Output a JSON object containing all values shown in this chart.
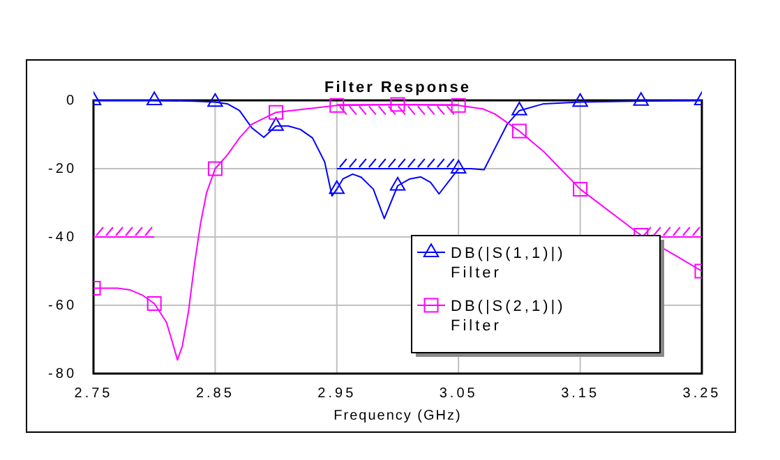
{
  "chart_data": {
    "type": "line",
    "title": "Filter Response",
    "xlabel": "Frequency (GHz)",
    "xlim": [
      2.75,
      3.25
    ],
    "xticks": [
      2.75,
      2.85,
      2.95,
      3.05,
      3.15,
      3.25
    ],
    "ylim": [
      -80,
      0
    ],
    "yticks": [
      -80,
      -60,
      -40,
      -20,
      0
    ],
    "grid": true,
    "legend": "bottom right",
    "series": [
      {
        "name": "DB(|S(1,1)|) Filter",
        "color": "#0000ff",
        "x": [
          2.75,
          2.8,
          2.83,
          2.85,
          2.86,
          2.87,
          2.88,
          2.89,
          2.9,
          2.91,
          2.92,
          2.93,
          2.94,
          2.946,
          2.95,
          2.955,
          2.963,
          2.97,
          2.98,
          2.989,
          3.0,
          3.01,
          3.019,
          3.027,
          3.034,
          3.05,
          3.06,
          3.071,
          3.08,
          3.09,
          3.1,
          3.12,
          3.15,
          3.2,
          3.25
        ],
        "values": [
          0,
          0,
          -0.2,
          -0.5,
          -1,
          -3,
          -8,
          -10.8,
          -7.5,
          -7.5,
          -8.5,
          -11,
          -18,
          -28,
          -26,
          -23,
          -21.6,
          -22.5,
          -26,
          -34.6,
          -25,
          -23,
          -22.4,
          -24,
          -27.4,
          -20,
          -20,
          -20.3,
          -14,
          -7,
          -3,
          -1,
          -0.5,
          -0.2,
          0
        ]
      },
      {
        "name": "DB(|S(2,1)|) Filter",
        "color": "#ff00ff",
        "x": [
          2.75,
          2.77,
          2.78,
          2.79,
          2.8,
          2.81,
          2.815,
          2.819,
          2.823,
          2.828,
          2.833,
          2.838,
          2.843,
          2.85,
          2.86,
          2.87,
          2.88,
          2.9,
          2.95,
          3.0,
          3.05,
          3.07,
          3.08,
          3.1,
          3.12,
          3.15,
          3.2,
          3.25
        ],
        "values": [
          -55,
          -55,
          -55.5,
          -57,
          -59.5,
          -65,
          -71,
          -76,
          -72,
          -62,
          -48,
          -36,
          -27,
          -20,
          -16,
          -11,
          -7,
          -3.5,
          -1.5,
          -1.2,
          -1.5,
          -2.5,
          -4,
          -9,
          -15,
          -26,
          -39.5,
          -50
        ]
      },
      {
        "type": "scatter",
        "color": "#0000ff",
        "marker": "triangle",
        "x": [
          2.75,
          2.8,
          2.85,
          2.9,
          2.95,
          3.0,
          3.05,
          3.1,
          3.15,
          3.2,
          3.25
        ],
        "values": [
          0,
          0,
          -0.5,
          -7.5,
          -26,
          -25,
          -20,
          -3,
          -0.5,
          -0.2,
          0
        ]
      },
      {
        "type": "scatter",
        "color": "#ff00ff",
        "marker": "square",
        "x": [
          2.75,
          2.8,
          2.85,
          2.9,
          2.95,
          3.0,
          3.05,
          3.1,
          3.15,
          3.2,
          3.25
        ],
        "values": [
          -55,
          -59.5,
          -20,
          -3.5,
          -1.5,
          -1.2,
          -1.5,
          -9,
          -26,
          -39.5,
          -50
        ]
      },
      {
        "type": "line",
        "color": "#ff00ff",
        "x": [
          2.75,
          2.8
        ],
        "values": [
          -40,
          -40
        ]
      },
      {
        "type": "line",
        "color": "#ff00ff",
        "x": [
          2.95,
          3.05
        ],
        "values": [
          -1.3,
          -1.3
        ]
      },
      {
        "type": "line",
        "color": "#ff00ff",
        "x": [
          3.2,
          3.25
        ],
        "values": [
          -40,
          -40
        ]
      },
      {
        "type": "line",
        "color": "#0000ff",
        "x": [
          2.95,
          3.05
        ],
        "values": [
          -20,
          -20
        ]
      }
    ]
  }
}
